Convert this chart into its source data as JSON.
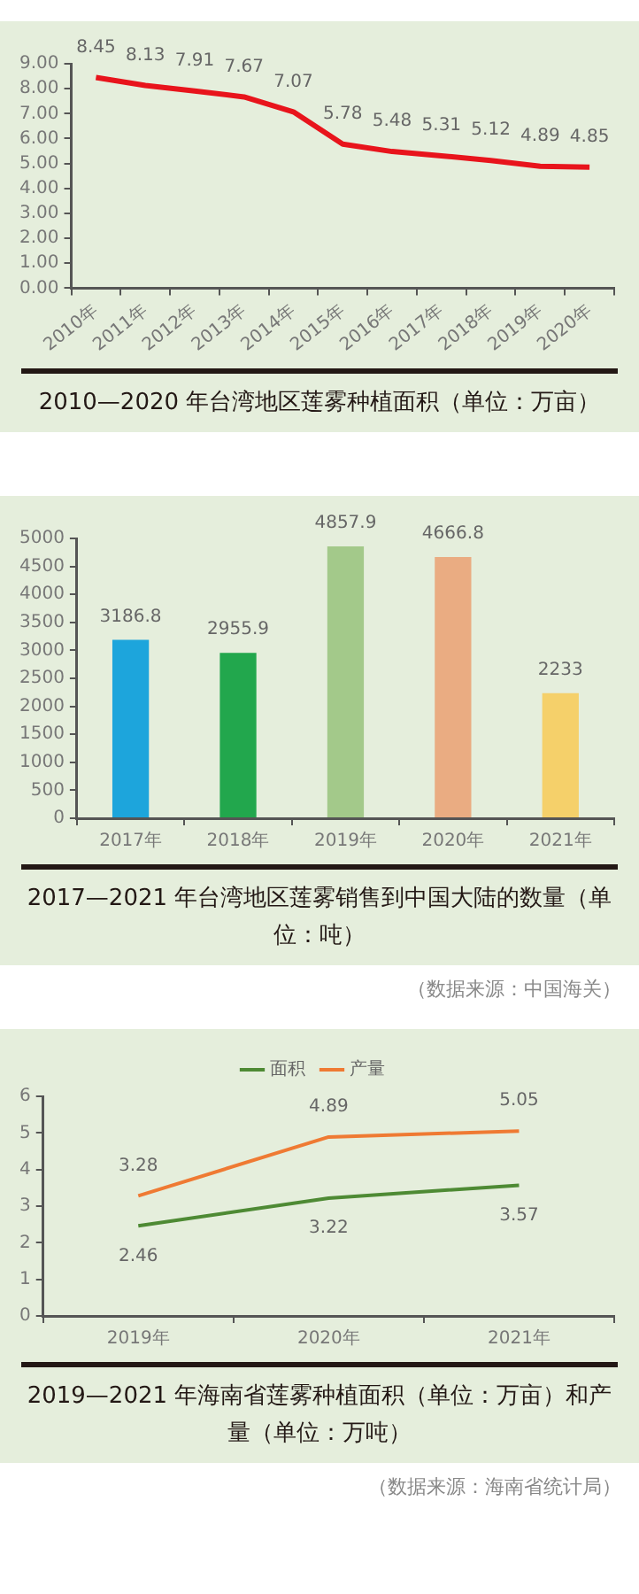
{
  "chart_data": [
    {
      "type": "line",
      "title": "2010—2020 年台湾地区莲雾种植面积（单位：万亩）",
      "categories": [
        "2010年",
        "2011年",
        "2012年",
        "2013年",
        "2014年",
        "2015年",
        "2016年",
        "2017年",
        "2018年",
        "2019年",
        "2020年"
      ],
      "series": [
        {
          "color": "#e8141c",
          "values": [
            8.45,
            8.13,
            7.91,
            7.67,
            7.07,
            5.78,
            5.48,
            5.31,
            5.12,
            4.89,
            4.85
          ]
        }
      ],
      "ylim": [
        0,
        9
      ],
      "yticks": [
        {
          "value": 0,
          "label": "0.00"
        },
        {
          "value": 1,
          "label": "1.00"
        },
        {
          "value": 2,
          "label": "2.00"
        },
        {
          "value": 3,
          "label": "3.00"
        },
        {
          "value": 4,
          "label": "4.00"
        },
        {
          "value": 5,
          "label": "5.00"
        },
        {
          "value": 6,
          "label": "6.00"
        },
        {
          "value": 7,
          "label": "7.00"
        },
        {
          "value": 8,
          "label": "8.00"
        },
        {
          "value": 9,
          "label": "9.00"
        }
      ],
      "data_labels": true,
      "marker": "none"
    },
    {
      "type": "bar",
      "title": "2017—2021 年台湾地区莲雾销售到中国大陆的数量（单位：吨）",
      "categories": [
        "2017年",
        "2018年",
        "2019年",
        "2020年",
        "2021年"
      ],
      "values": [
        3186.8,
        2955.9,
        4857.9,
        4666.8,
        2233
      ],
      "colors": [
        "#1da5dc",
        "#22a74d",
        "#a3c98a",
        "#eaac82",
        "#f5d06a"
      ],
      "ylim": [
        0,
        5000
      ],
      "yticks": [
        0,
        500,
        1000,
        1500,
        2000,
        2500,
        3000,
        3500,
        4000,
        4500,
        5000
      ],
      "data_labels": true,
      "annotations": [
        "（数据来源：中国海关）"
      ]
    },
    {
      "type": "line",
      "title": "2019—2021 年海南省莲雾种植面积（单位：万亩）和产量（单位：万吨）",
      "categories": [
        "2019年",
        "2020年",
        "2021年"
      ],
      "series": [
        {
          "name": "面积",
          "color": "#4e8a34",
          "values": [
            2.46,
            3.22,
            3.57
          ]
        },
        {
          "name": "产量",
          "color": "#ef7a33",
          "values": [
            3.28,
            4.89,
            5.05
          ]
        }
      ],
      "ylim": [
        0,
        6
      ],
      "yticks": [
        0,
        1,
        2,
        3,
        4,
        5,
        6
      ],
      "data_labels": true,
      "marker": "none",
      "legend": "top",
      "annotations": [
        "（数据来源：海南省统计局）"
      ]
    }
  ]
}
